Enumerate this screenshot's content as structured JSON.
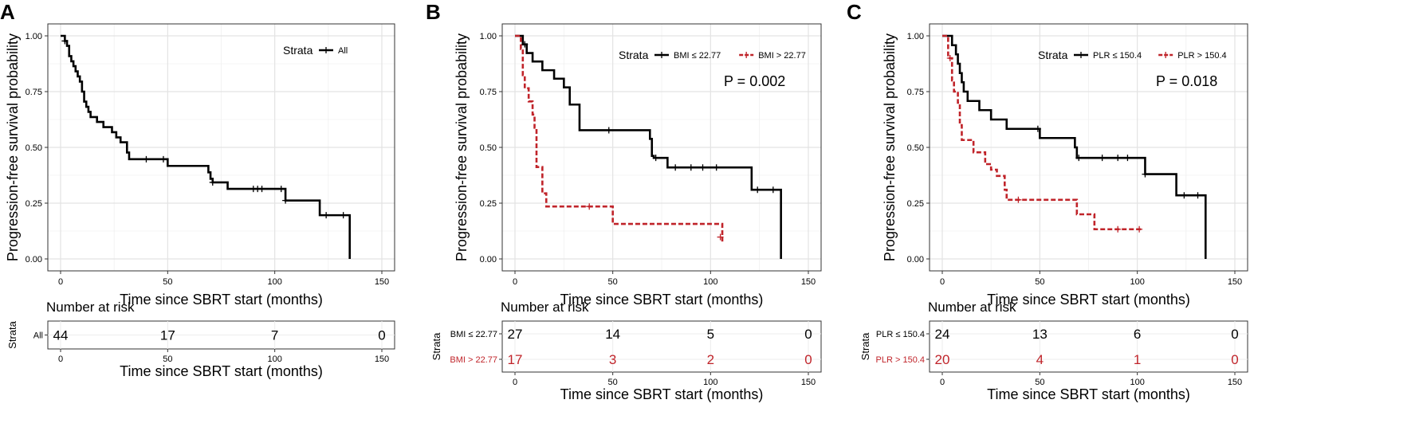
{
  "colors": {
    "black": "#000000",
    "red": "#c0242a",
    "grid": "#e3e3e3",
    "frame": "#333333"
  },
  "chart_data": [
    {
      "type": "line",
      "subtype": "kaplan-meier",
      "panel": "A",
      "xlabel": "Time since SBRT start (months)",
      "ylabel": "Progression-free survival probability",
      "xlim": [
        0,
        150
      ],
      "ylim": [
        0,
        1
      ],
      "xticks": [
        "0",
        "50",
        "100",
        "150"
      ],
      "yticks": [
        "0.00",
        "0.25",
        "0.50",
        "0.75",
        "1.00"
      ],
      "legend": {
        "title": "Strata",
        "entries": [
          "All"
        ]
      },
      "pvalue": null,
      "series": [
        {
          "name": "All",
          "color": "#000000",
          "dashed": false,
          "steps": [
            [
              0,
              1.0
            ],
            [
              2,
              0.977
            ],
            [
              3,
              0.955
            ],
            [
              4,
              0.909
            ],
            [
              5,
              0.886
            ],
            [
              6,
              0.864
            ],
            [
              7,
              0.841
            ],
            [
              8,
              0.818
            ],
            [
              9,
              0.795
            ],
            [
              10,
              0.75
            ],
            [
              11,
              0.705
            ],
            [
              12,
              0.682
            ],
            [
              13,
              0.659
            ],
            [
              14,
              0.636
            ],
            [
              17,
              0.614
            ],
            [
              20,
              0.591
            ],
            [
              24,
              0.568
            ],
            [
              26,
              0.545
            ],
            [
              28,
              0.523
            ],
            [
              31,
              0.477
            ],
            [
              32,
              0.447
            ],
            [
              50,
              0.417
            ],
            [
              69,
              0.388
            ],
            [
              70,
              0.359
            ],
            [
              71,
              0.343
            ],
            [
              78,
              0.314
            ],
            [
              105,
              0.262
            ],
            [
              121,
              0.196
            ],
            [
              134,
              0.196
            ],
            [
              135,
              0.0
            ]
          ],
          "end": 135,
          "censors": [
            [
              2,
              0.977
            ],
            [
              40,
              0.447
            ],
            [
              48,
              0.447
            ],
            [
              71,
              0.343
            ],
            [
              90,
              0.314
            ],
            [
              92,
              0.314
            ],
            [
              94,
              0.314
            ],
            [
              103,
              0.314
            ],
            [
              105,
              0.262
            ],
            [
              124,
              0.196
            ],
            [
              132,
              0.196
            ]
          ]
        }
      ],
      "risk": {
        "title": "Number at risk",
        "ytitle": "Strata",
        "xlabel": "Time since SBRT start (months)",
        "times": [
          0,
          50,
          100,
          150
        ],
        "rows": [
          {
            "label": "All",
            "color": "#000000",
            "values": [
              "44",
              "17",
              "7",
              "0"
            ]
          }
        ]
      }
    },
    {
      "type": "line",
      "subtype": "kaplan-meier",
      "panel": "B",
      "xlabel": "Time since SBRT start (months)",
      "ylabel": "Progression-free survival probability",
      "xlim": [
        0,
        150
      ],
      "ylim": [
        0,
        1
      ],
      "xticks": [
        "0",
        "50",
        "100",
        "150"
      ],
      "yticks": [
        "0.00",
        "0.25",
        "0.50",
        "0.75",
        "1.00"
      ],
      "legend": {
        "title": "Strata",
        "entries": [
          "BMI ≤ 22.77",
          "BMI > 22.77"
        ]
      },
      "pvalue": "P = 0.002",
      "series": [
        {
          "name": "BMI ≤ 22.77",
          "color": "#000000",
          "dashed": false,
          "steps": [
            [
              0,
              1.0
            ],
            [
              4,
              0.962
            ],
            [
              6,
              0.923
            ],
            [
              9,
              0.885
            ],
            [
              14,
              0.846
            ],
            [
              20,
              0.808
            ],
            [
              25,
              0.769
            ],
            [
              28,
              0.692
            ],
            [
              33,
              0.577
            ],
            [
              69,
              0.538
            ],
            [
              70,
              0.462
            ],
            [
              71,
              0.453
            ],
            [
              78,
              0.41
            ],
            [
              121,
              0.31
            ],
            [
              135,
              0.31
            ],
            [
              136,
              0.0
            ]
          ],
          "end": 136,
          "censors": [
            [
              5,
              0.962
            ],
            [
              48,
              0.577
            ],
            [
              72,
              0.453
            ],
            [
              82,
              0.41
            ],
            [
              90,
              0.41
            ],
            [
              96,
              0.41
            ],
            [
              103,
              0.41
            ],
            [
              124,
              0.31
            ],
            [
              132,
              0.31
            ]
          ]
        },
        {
          "name": "BMI > 22.77",
          "color": "#c0242a",
          "dashed": true,
          "steps": [
            [
              0,
              1.0
            ],
            [
              3,
              0.941
            ],
            [
              4,
              0.824
            ],
            [
              5,
              0.765
            ],
            [
              7,
              0.706
            ],
            [
              9,
              0.647
            ],
            [
              10,
              0.588
            ],
            [
              11,
              0.412
            ],
            [
              14,
              0.294
            ],
            [
              15,
              0.294
            ],
            [
              16,
              0.235
            ],
            [
              50,
              0.157
            ],
            [
              105,
              0.157
            ],
            [
              106,
              0.078
            ]
          ],
          "end": 106,
          "censors": [
            [
              38,
              0.235
            ],
            [
              105,
              0.098
            ]
          ]
        }
      ],
      "risk": {
        "title": "Number at risk",
        "ytitle": "Strata",
        "xlabel": "Time since SBRT start (months)",
        "times": [
          0,
          50,
          100,
          150
        ],
        "rows": [
          {
            "label": "BMI ≤ 22.77",
            "color": "#000000",
            "values": [
              "27",
              "14",
              "5",
              "0"
            ]
          },
          {
            "label": "BMI > 22.77",
            "color": "#c0242a",
            "values": [
              "17",
              "3",
              "2",
              "0"
            ]
          }
        ]
      }
    },
    {
      "type": "line",
      "subtype": "kaplan-meier",
      "panel": "C",
      "xlabel": "Time since SBRT start (months)",
      "ylabel": "Progression-free survival probability",
      "xlim": [
        0,
        150
      ],
      "ylim": [
        0,
        1
      ],
      "xticks": [
        "0",
        "50",
        "100",
        "150"
      ],
      "yticks": [
        "0.00",
        "0.25",
        "0.50",
        "0.75",
        "1.00"
      ],
      "legend": {
        "title": "Strata",
        "entries": [
          "PLR ≤ 150.4",
          "PLR > 150.4"
        ]
      },
      "pvalue": "P = 0.018",
      "series": [
        {
          "name": "PLR ≤ 150.4",
          "color": "#000000",
          "dashed": false,
          "steps": [
            [
              0,
              1.0
            ],
            [
              5,
              0.958
            ],
            [
              7,
              0.917
            ],
            [
              8,
              0.875
            ],
            [
              9,
              0.833
            ],
            [
              10,
              0.792
            ],
            [
              11,
              0.75
            ],
            [
              13,
              0.708
            ],
            [
              19,
              0.667
            ],
            [
              25,
              0.625
            ],
            [
              33,
              0.583
            ],
            [
              50,
              0.542
            ],
            [
              68,
              0.5
            ],
            [
              69,
              0.453
            ],
            [
              104,
              0.38
            ],
            [
              120,
              0.285
            ],
            [
              134,
              0.285
            ],
            [
              135,
              0.0
            ]
          ],
          "end": 135,
          "censors": [
            [
              49,
              0.583
            ],
            [
              70,
              0.453
            ],
            [
              82,
              0.453
            ],
            [
              90,
              0.453
            ],
            [
              95,
              0.453
            ],
            [
              104,
              0.38
            ],
            [
              124,
              0.285
            ],
            [
              131,
              0.285
            ]
          ]
        },
        {
          "name": "PLR > 150.4",
          "color": "#c0242a",
          "dashed": true,
          "steps": [
            [
              0,
              1.0
            ],
            [
              3,
              0.9
            ],
            [
              5,
              0.8
            ],
            [
              6,
              0.75
            ],
            [
              8,
              0.7
            ],
            [
              9,
              0.6
            ],
            [
              10,
              0.533
            ],
            [
              15,
              0.533
            ],
            [
              16,
              0.478
            ],
            [
              21,
              0.478
            ],
            [
              22,
              0.425
            ],
            [
              25,
              0.4
            ],
            [
              28,
              0.372
            ],
            [
              32,
              0.31
            ],
            [
              33,
              0.265
            ],
            [
              69,
              0.2
            ],
            [
              77,
              0.2
            ],
            [
              78,
              0.133
            ],
            [
              103,
              0.133
            ]
          ],
          "end": 103,
          "censors": [
            [
              4,
              0.9
            ],
            [
              39,
              0.265
            ],
            [
              90,
              0.133
            ],
            [
              101,
              0.133
            ]
          ]
        }
      ],
      "risk": {
        "title": "Number at risk",
        "ytitle": "Strata",
        "xlabel": "Time since SBRT start (months)",
        "times": [
          0,
          50,
          100,
          150
        ],
        "rows": [
          {
            "label": "PLR ≤ 150.4",
            "color": "#000000",
            "values": [
              "24",
              "13",
              "6",
              "0"
            ]
          },
          {
            "label": "PLR > 150.4",
            "color": "#c0242a",
            "values": [
              "20",
              "4",
              "1",
              "0"
            ]
          }
        ]
      }
    }
  ]
}
